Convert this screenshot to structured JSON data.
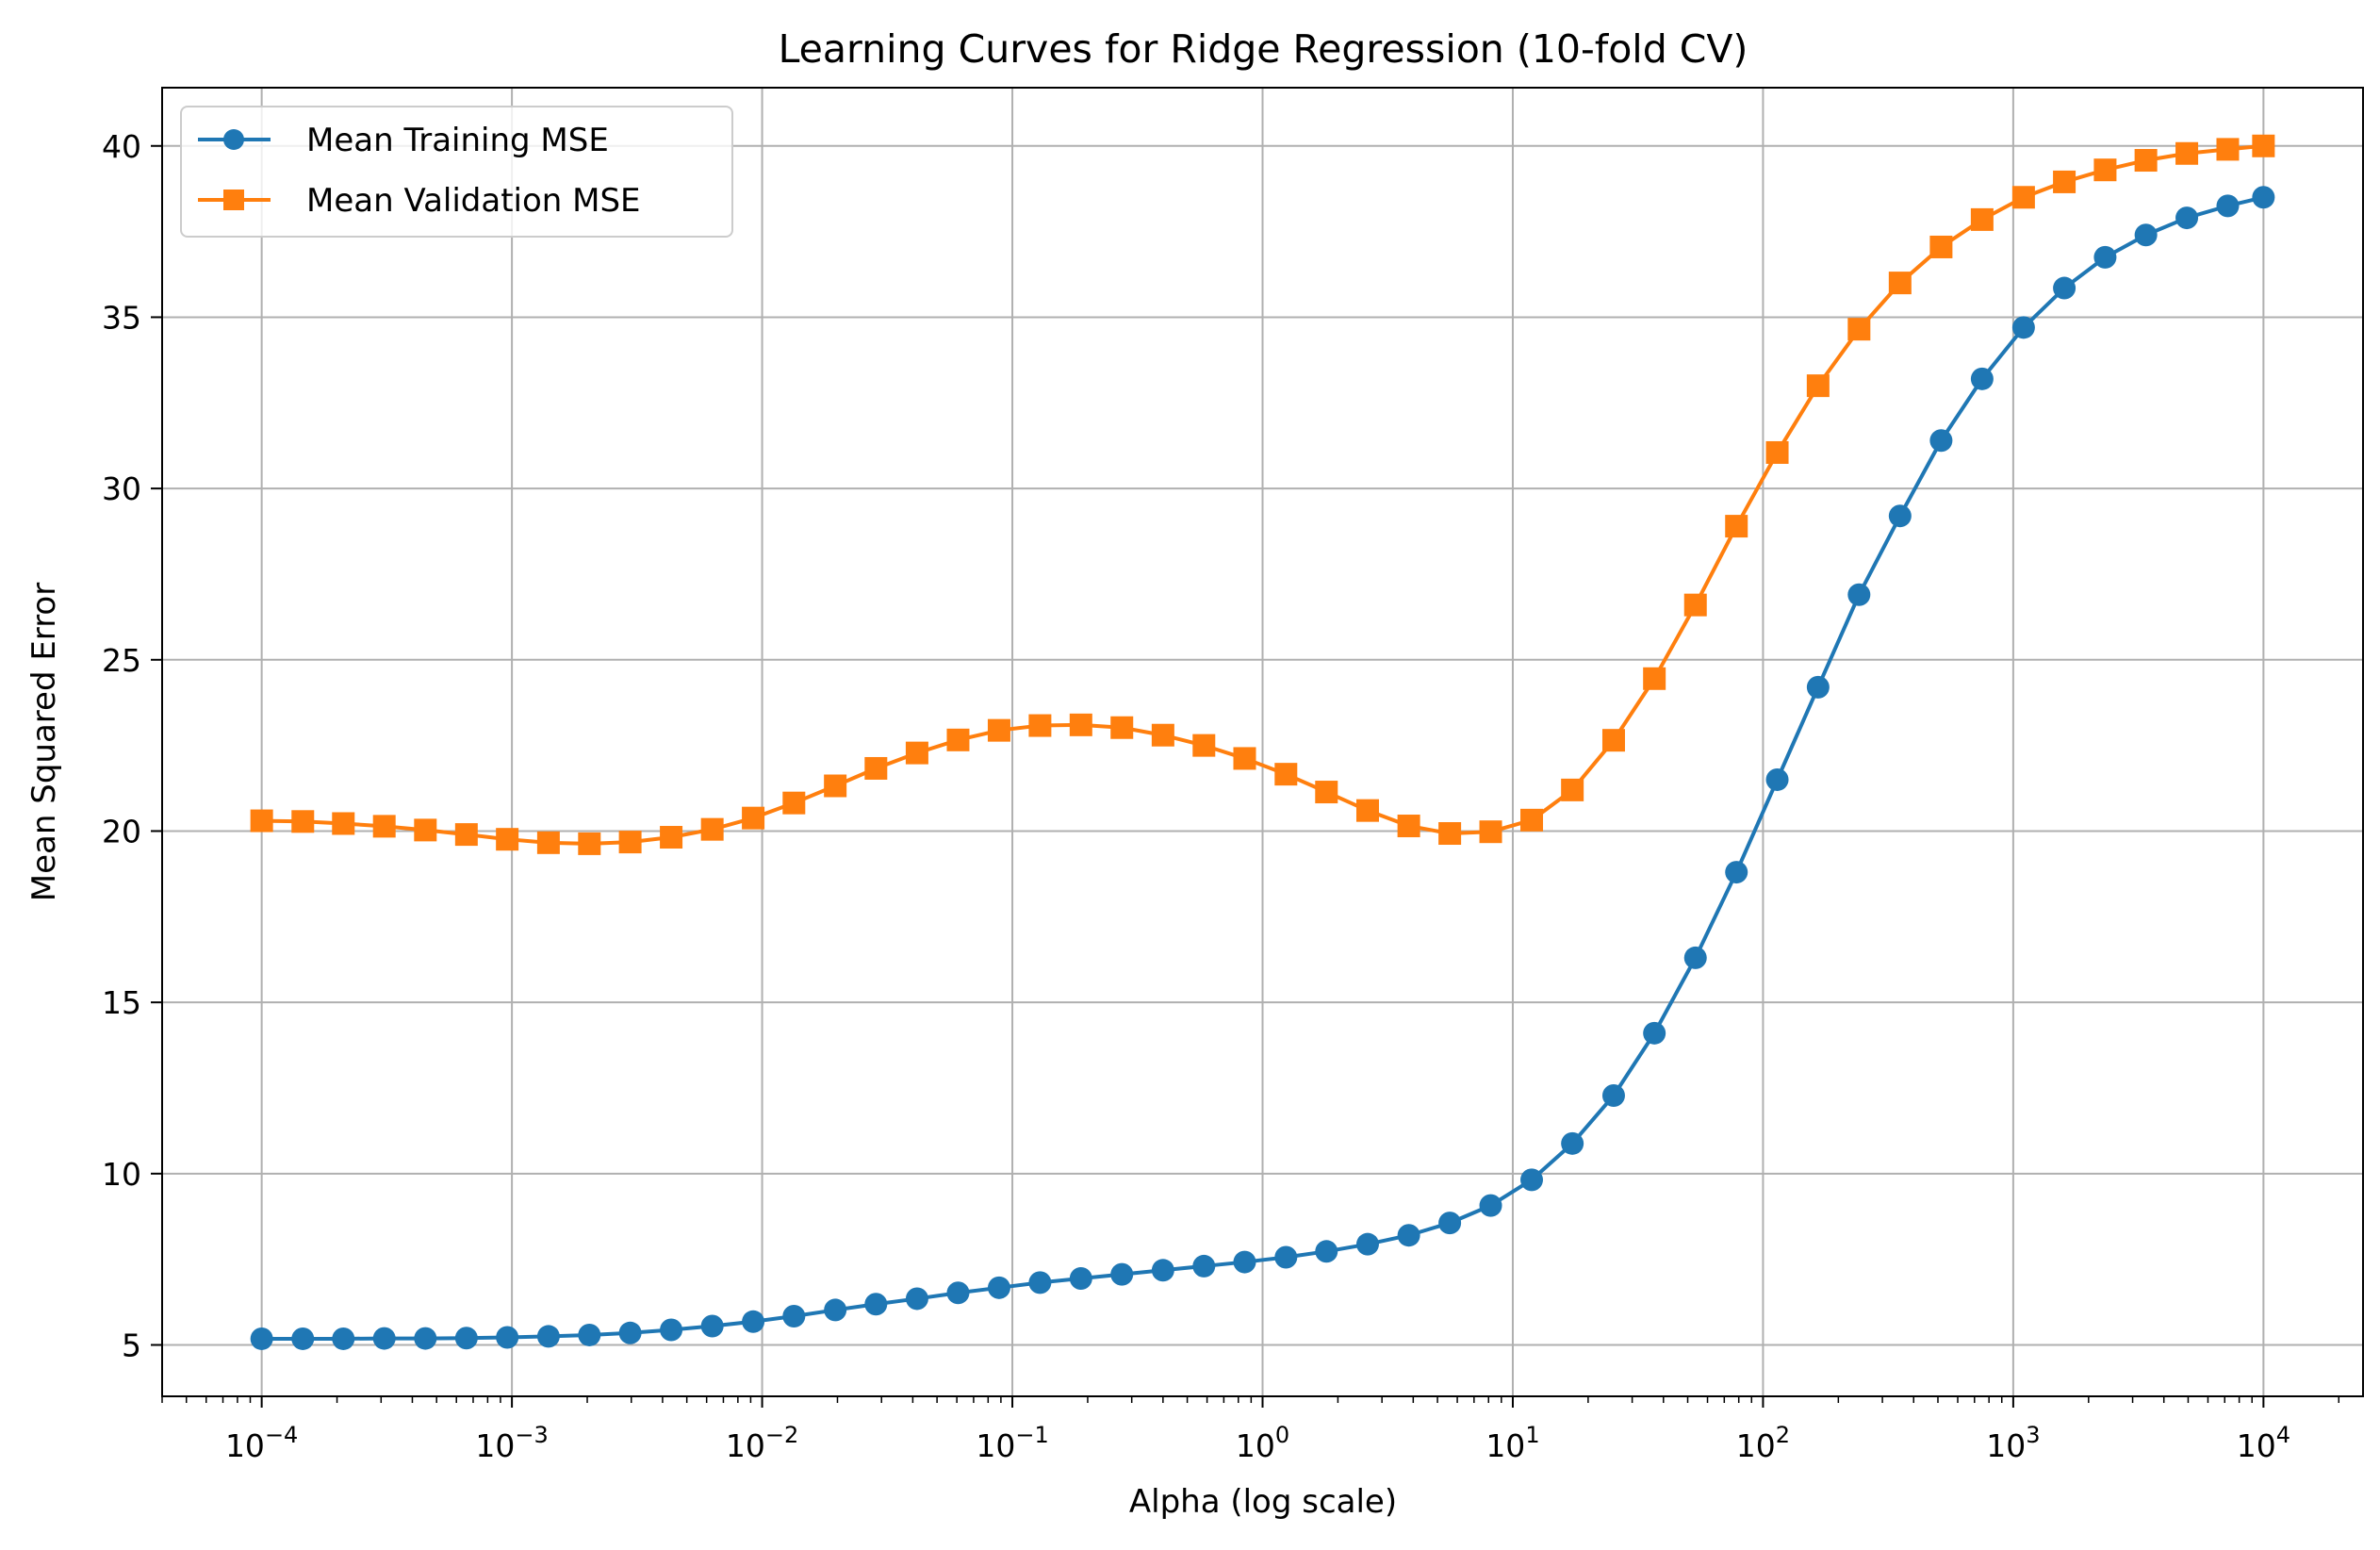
{
  "chart_data": {
    "type": "line",
    "title": "Learning Curves for Ridge Regression (10-fold CV)",
    "xlabel": "Alpha (log scale)",
    "ylabel": "Mean Squared Error",
    "xscale": "log",
    "xlim": [
      4e-05,
      25000
    ],
    "ylim": [
      3.5,
      41.7
    ],
    "grid": true,
    "legend_position": "top-left",
    "x_ticks": [
      {
        "value": 0.0001,
        "base": "10",
        "exp": "−4"
      },
      {
        "value": 0.001,
        "base": "10",
        "exp": "−3"
      },
      {
        "value": 0.01,
        "base": "10",
        "exp": "−2"
      },
      {
        "value": 0.1,
        "base": "10",
        "exp": "−1"
      },
      {
        "value": 1,
        "base": "10",
        "exp": "0"
      },
      {
        "value": 10,
        "base": "10",
        "exp": "1"
      },
      {
        "value": 100,
        "base": "10",
        "exp": "2"
      },
      {
        "value": 1000,
        "base": "10",
        "exp": "3"
      },
      {
        "value": 10000,
        "base": "10",
        "exp": "4"
      }
    ],
    "y_ticks": [
      {
        "value": 5,
        "label": "5"
      },
      {
        "value": 10,
        "label": "10"
      },
      {
        "value": 15,
        "label": "15"
      },
      {
        "value": 20,
        "label": "20"
      },
      {
        "value": 25,
        "label": "25"
      },
      {
        "value": 30,
        "label": "30"
      },
      {
        "value": 35,
        "label": "35"
      },
      {
        "value": 40,
        "label": "40"
      }
    ],
    "x": [
      0.0001,
      0.000146,
      0.000212,
      0.000309,
      0.000451,
      0.000658,
      0.000958,
      0.0014,
      0.00204,
      0.00297,
      0.00433,
      0.00632,
      0.00921,
      0.0134,
      0.0196,
      0.0285,
      0.0416,
      0.0607,
      0.0885,
      0.129,
      0.188,
      0.274,
      0.4,
      0.583,
      0.848,
      1.24,
      1.8,
      2.63,
      3.84,
      5.6,
      8.16,
      11.9,
      17.3,
      25.3,
      36.8,
      53.7,
      78.3,
      114,
      166,
      242,
      353,
      515,
      751,
      1100,
      1600,
      2330,
      3390,
      4940,
      7200,
      10000
    ],
    "series": [
      {
        "name": "Mean Training MSE",
        "color": "#1f77b4",
        "marker": "circle",
        "values": [
          5.18,
          5.18,
          5.18,
          5.19,
          5.19,
          5.2,
          5.22,
          5.25,
          5.29,
          5.35,
          5.44,
          5.55,
          5.68,
          5.84,
          6.02,
          6.19,
          6.35,
          6.52,
          6.67,
          6.82,
          6.94,
          7.06,
          7.18,
          7.3,
          7.42,
          7.56,
          7.73,
          7.94,
          8.2,
          8.56,
          9.07,
          9.82,
          10.88,
          12.28,
          14.1,
          16.3,
          18.8,
          21.5,
          24.2,
          26.9,
          29.2,
          31.4,
          33.2,
          34.7,
          35.85,
          36.75,
          37.4,
          37.9,
          38.25,
          38.5
        ]
      },
      {
        "name": "Mean Validation MSE",
        "color": "#ff7f0e",
        "marker": "square",
        "values": [
          20.3,
          20.28,
          20.22,
          20.14,
          20.03,
          19.9,
          19.76,
          19.66,
          19.63,
          19.68,
          19.82,
          20.05,
          20.38,
          20.82,
          21.32,
          21.83,
          22.28,
          22.66,
          22.94,
          23.08,
          23.1,
          23.02,
          22.8,
          22.5,
          22.12,
          21.66,
          21.14,
          20.6,
          20.15,
          19.93,
          19.98,
          20.32,
          21.2,
          22.65,
          24.45,
          26.6,
          28.9,
          31.05,
          33.0,
          34.65,
          36.0,
          37.05,
          37.85,
          38.5,
          38.95,
          39.3,
          39.58,
          39.78,
          39.9,
          40.0
        ]
      }
    ]
  }
}
